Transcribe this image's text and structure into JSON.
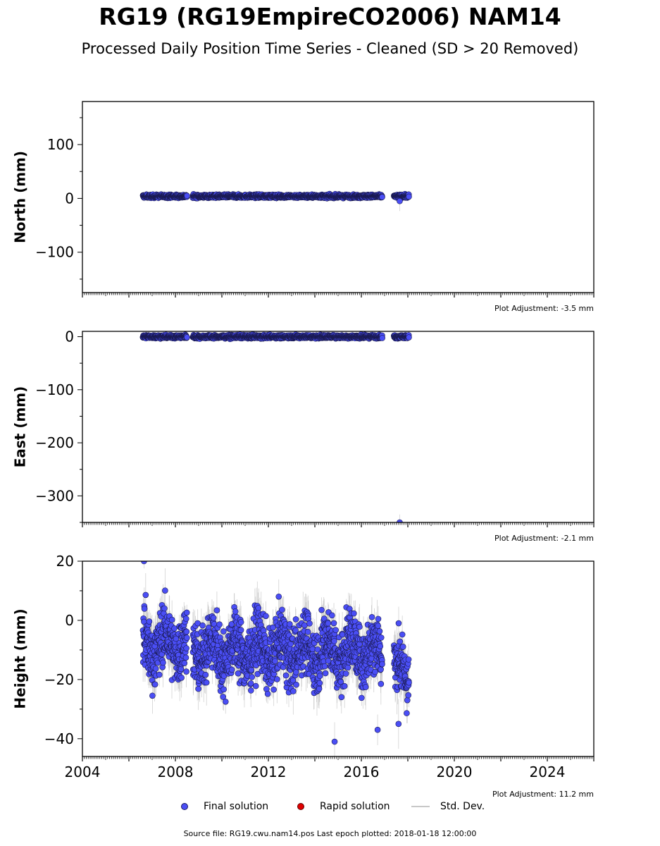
{
  "title": "RG19 (RG19EmpireCO2006) NAM14",
  "subtitle": "Processed Daily Position Time Series - Cleaned (SD > 20 Removed)",
  "legend": {
    "final": "Final solution",
    "rapid": "Rapid solution",
    "std": "Std. Dev."
  },
  "source": "Source file: RG19.cwu.nam14.pos  Last epoch plotted: 2018-01-18 12:00:00",
  "colors": {
    "final": "#4a4ef5",
    "rapid": "#e00000",
    "std": "#b4b4b4"
  },
  "chart_data": [
    {
      "type": "scatter",
      "ylabel": "North (mm)",
      "xlim": [
        2004,
        2026
      ],
      "ylim": [
        -175,
        180
      ],
      "yticks": [
        -100,
        0,
        100
      ],
      "yticklabels": [
        "−100",
        "0",
        "100"
      ],
      "adjustment": "Plot Adjustment: -3.5 mm",
      "segments": [
        [
          2006.6,
          2008.5,
          4,
          2,
          5
        ],
        [
          2008.75,
          2016.9,
          4,
          2,
          5
        ],
        [
          2017.4,
          2018.05,
          4,
          2,
          5
        ]
      ],
      "outliers": [
        [
          2017.65,
          -5,
          14
        ]
      ]
    },
    {
      "type": "scatter",
      "ylabel": "East (mm)",
      "xlim": [
        2004,
        2026
      ],
      "ylim": [
        -350,
        10
      ],
      "yticks": [
        -300,
        -200,
        -100,
        0
      ],
      "yticklabels": [
        "−300",
        "−200",
        "−100",
        "0"
      ],
      "adjustment": "Plot Adjustment: -2.1 mm",
      "segments": [
        [
          2006.6,
          2008.5,
          0,
          2,
          5
        ],
        [
          2008.75,
          2016.9,
          0,
          2,
          5
        ],
        [
          2017.4,
          2018.05,
          0,
          2,
          5
        ]
      ],
      "outliers": [
        [
          2017.65,
          -350,
          18
        ]
      ]
    },
    {
      "type": "scatter",
      "ylabel": "Height (mm)",
      "xlabel": "",
      "xlim": [
        2004,
        2026
      ],
      "ylim": [
        -46,
        20
      ],
      "yticks": [
        -40,
        -20,
        0,
        20
      ],
      "yticklabels": [
        "−40",
        "−20",
        "0",
        "20"
      ],
      "xticks": [
        2004,
        2008,
        2012,
        2016,
        2020,
        2024
      ],
      "adjustment": "Plot Adjustment: 11.2 mm",
      "segments": [
        [
          2006.6,
          2008.5,
          -8,
          7,
          6
        ],
        [
          2008.75,
          2016.9,
          -10,
          7,
          6
        ],
        [
          2017.4,
          2018.05,
          -17,
          6,
          6
        ]
      ],
      "outliers": [
        [
          2006.65,
          20,
          4
        ],
        [
          2014.85,
          -41,
          6
        ],
        [
          2016.7,
          -37,
          6
        ],
        [
          2017.6,
          -35,
          8
        ]
      ]
    }
  ]
}
